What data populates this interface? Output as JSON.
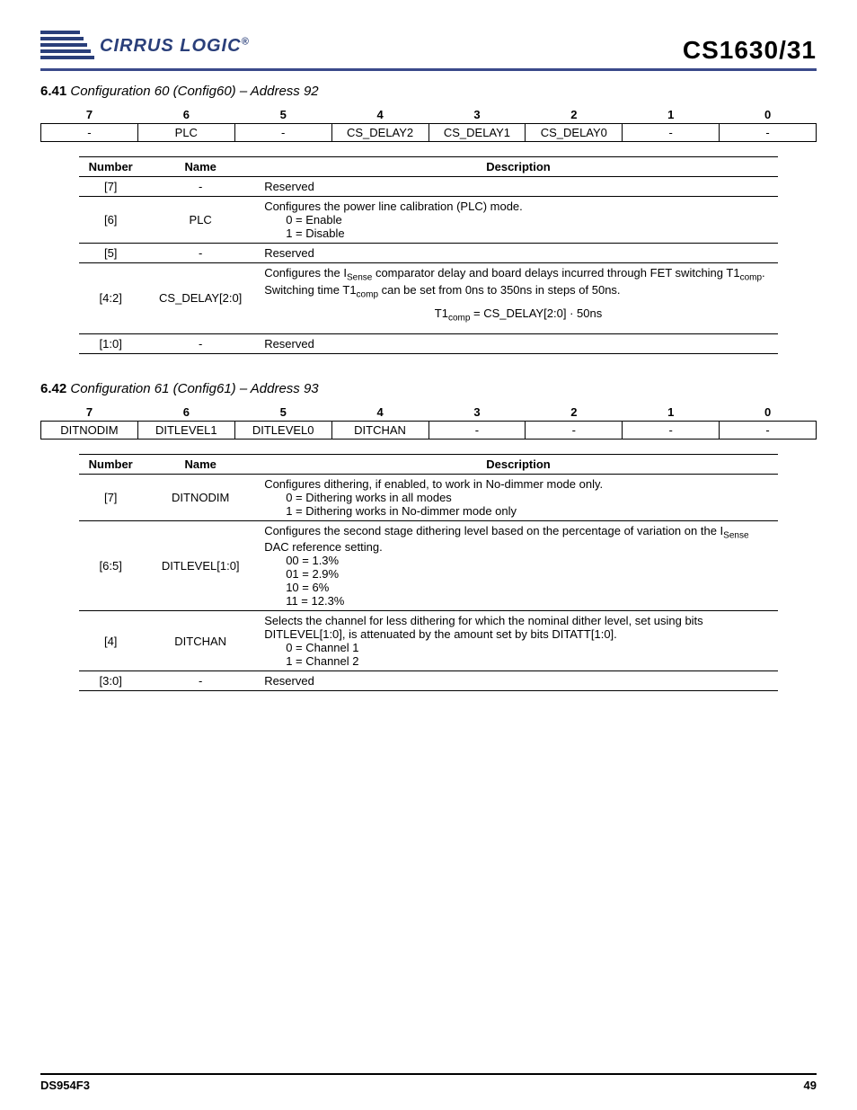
{
  "header": {
    "brand": "CIRRUS LOGIC",
    "brand_color": "#2a3f7a",
    "product": "CS1630/31"
  },
  "sections": [
    {
      "num": "6.41",
      "title": "Configuration 60 (Config60) – Address 92",
      "bits_header": [
        "7",
        "6",
        "5",
        "4",
        "3",
        "2",
        "1",
        "0"
      ],
      "bits_values": [
        "-",
        "PLC",
        "-",
        "CS_DELAY2",
        "CS_DELAY1",
        "CS_DELAY0",
        "-",
        "-"
      ],
      "desc_header": [
        "Number",
        "Name",
        "Description"
      ],
      "rows": [
        {
          "num": "[7]",
          "name": "-",
          "desc_html": "Reserved"
        },
        {
          "num": "[6]",
          "name": "PLC",
          "desc_html": "Configures the power line calibration (PLC) mode.<span class=\"indent\">0 = Enable</span><span class=\"indent\">1 = Disable</span>"
        },
        {
          "num": "[5]",
          "name": "-",
          "desc_html": "Reserved"
        },
        {
          "num": "[4:2]",
          "name": "CS_DELAY[2:0]",
          "desc_html": "Configures the I<span class=\"sub\">Sense</span> comparator delay and board delays incurred through FET switching T1<span class=\"sub\">comp</span>. Switching time T1<span class=\"sub\">comp</span> can be set from 0ns to 350ns in steps of 50ns.<div class=\"formula\">T1<span class=\"sub\">comp</span> = CS_DELAY[2:0] · 50ns</div>"
        },
        {
          "num": "[1:0]",
          "name": "-",
          "desc_html": "Reserved"
        }
      ]
    },
    {
      "num": "6.42",
      "title": "Configuration 61 (Config61) – Address 93",
      "bits_header": [
        "7",
        "6",
        "5",
        "4",
        "3",
        "2",
        "1",
        "0"
      ],
      "bits_values": [
        "DITNODIM",
        "DITLEVEL1",
        "DITLEVEL0",
        "DITCHAN",
        "-",
        "-",
        "-",
        "-"
      ],
      "desc_header": [
        "Number",
        "Name",
        "Description"
      ],
      "rows": [
        {
          "num": "[7]",
          "name": "DITNODIM",
          "desc_html": "Configures dithering, if enabled, to work in No-dimmer mode only.<span class=\"indent\">0 = Dithering works in all modes</span><span class=\"indent\">1 = Dithering works in No-dimmer mode only</span>"
        },
        {
          "num": "[6:5]",
          "name": "DITLEVEL[1:0]",
          "desc_html": "Configures the second stage dithering level based on the percentage of variation on the I<span class=\"sub\">Sense</span> DAC reference setting.<span class=\"indent\">00 = 1.3%</span><span class=\"indent\">01 = 2.9%</span><span class=\"indent\">10 = 6%</span><span class=\"indent\">11 = 12.3%</span>"
        },
        {
          "num": "[4]",
          "name": "DITCHAN",
          "desc_html": "Selects the channel for less dithering for which the nominal dither level, set using bits DITLEVEL[1:0], is attenuated by the amount set by bits DITATT[1:0].<span class=\"indent\">0 = Channel 1</span><span class=\"indent\">1 = Channel 2</span>"
        },
        {
          "num": "[3:0]",
          "name": "-",
          "desc_html": "Reserved"
        }
      ]
    }
  ],
  "footer": {
    "doc": "DS954F3",
    "page": "49"
  }
}
